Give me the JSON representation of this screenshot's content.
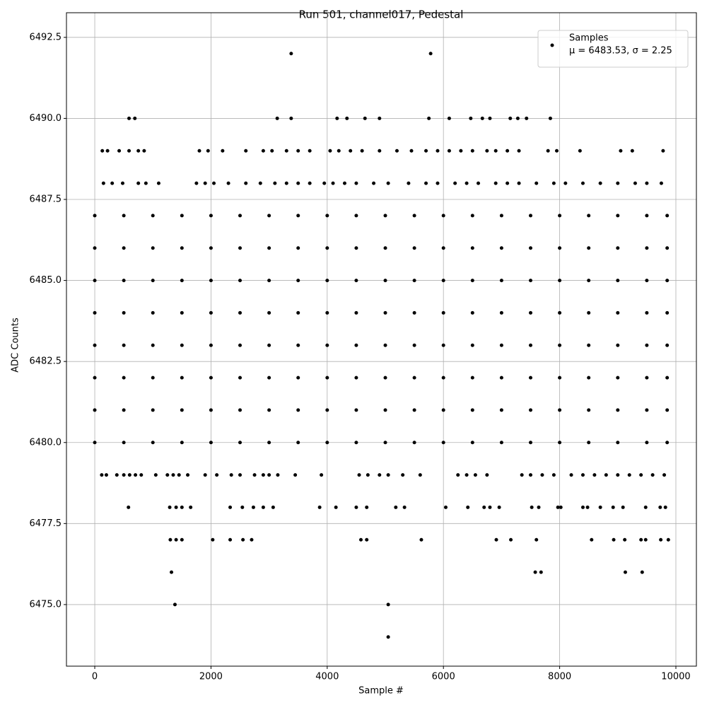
{
  "chart_data": {
    "type": "scatter",
    "title": "Run 501, channel017, Pedestal",
    "xlabel": "Sample #",
    "ylabel": "ADC Counts",
    "legend_position": "upper right",
    "annotation": "μ = 6483.53, σ = 2.25",
    "grid": true,
    "xlim": [
      -487,
      10353
    ],
    "xticks": [
      0,
      2000,
      4000,
      6000,
      8000,
      10000
    ],
    "ylim": [
      6473.1,
      6493.26
    ],
    "yticks": [
      {
        "value": 6475,
        "label": "6475.0"
      },
      {
        "value": 6477.5,
        "label": "6477.5"
      },
      {
        "value": 6480,
        "label": "6480.0"
      },
      {
        "value": 6482.5,
        "label": "6482.5"
      },
      {
        "value": 6485,
        "label": "6485.0"
      },
      {
        "value": 6487.5,
        "label": "6487.5"
      },
      {
        "value": 6490,
        "label": "6490.0"
      },
      {
        "value": 6492.5,
        "label": "6492.5"
      }
    ],
    "series": [
      {
        "name": "Samples",
        "color": "#000000",
        "x": [
          0,
          500,
          1000,
          1500,
          2000,
          2500,
          3000,
          3500,
          4000,
          4500,
          5000,
          5500,
          6000,
          6500,
          7000,
          7500,
          8000,
          8500,
          9000,
          9500,
          9850,
          0,
          500,
          1000,
          1500,
          2000,
          2500,
          3000,
          3500,
          4000,
          4500,
          5000,
          5500,
          6000,
          6500,
          7000,
          7500,
          8000,
          8500,
          9000,
          9500,
          9850,
          0,
          500,
          1000,
          1500,
          2000,
          2500,
          3000,
          3500,
          4000,
          4500,
          5000,
          5500,
          6000,
          6500,
          7000,
          7500,
          8000,
          8500,
          9000,
          9500,
          9850,
          0,
          500,
          1000,
          1500,
          2000,
          2500,
          3000,
          3500,
          4000,
          4500,
          5000,
          5500,
          6000,
          6500,
          7000,
          7500,
          8000,
          8500,
          9000,
          9500,
          9850,
          0,
          500,
          1000,
          1500,
          2000,
          2500,
          3000,
          3500,
          4000,
          4500,
          5000,
          5500,
          6000,
          6500,
          7000,
          7500,
          8000,
          8500,
          9000,
          9500,
          9850,
          0,
          500,
          1000,
          1500,
          2000,
          2500,
          3000,
          3500,
          4000,
          4500,
          5000,
          5500,
          6000,
          6500,
          7000,
          7500,
          8000,
          8500,
          9000,
          9500,
          9850,
          0,
          500,
          1000,
          1500,
          2000,
          2500,
          3000,
          3500,
          4000,
          4500,
          5000,
          5500,
          6000,
          6500,
          7000,
          7500,
          8000,
          8500,
          9000,
          9500,
          9850,
          0,
          500,
          1000,
          1500,
          2000,
          2500,
          3000,
          3500,
          4000,
          4500,
          5000,
          5500,
          6000,
          6500,
          7000,
          7500,
          8000,
          8500,
          9000,
          9500,
          9850,
          3380,
          5780,
          590,
          690,
          3140,
          3380,
          4170,
          4340,
          4650,
          4900,
          5750,
          6100,
          6470,
          6670,
          6800,
          7150,
          7280,
          7430,
          7840,
          130,
          220,
          420,
          590,
          750,
          850,
          1800,
          1950,
          2200,
          2600,
          2900,
          3050,
          3300,
          3500,
          3700,
          4050,
          4200,
          4400,
          4600,
          4900,
          5200,
          5450,
          5700,
          5900,
          6100,
          6300,
          6500,
          6750,
          6900,
          7100,
          7300,
          7800,
          7950,
          8350,
          9050,
          9250,
          9780,
          150,
          300,
          480,
          750,
          880,
          1100,
          1750,
          1900,
          2050,
          2300,
          2600,
          2850,
          3100,
          3300,
          3500,
          3700,
          3950,
          4100,
          4300,
          4500,
          4800,
          5050,
          5400,
          5700,
          5900,
          6200,
          6400,
          6600,
          6900,
          7100,
          7300,
          7600,
          7900,
          8100,
          8400,
          8700,
          9000,
          9300,
          9500,
          9750,
          120,
          200,
          380,
          500,
          600,
          700,
          800,
          1050,
          1250,
          1350,
          1450,
          1600,
          1900,
          2100,
          2350,
          2500,
          2750,
          2900,
          3000,
          3150,
          3450,
          3900,
          4550,
          4700,
          4900,
          5050,
          5300,
          5600,
          6250,
          6400,
          6550,
          6750,
          7350,
          7500,
          7700,
          7900,
          8200,
          8400,
          8600,
          8800,
          9000,
          9200,
          9400,
          9600,
          9800,
          580,
          1290,
          1400,
          1500,
          1650,
          2330,
          2540,
          2730,
          2900,
          3070,
          3870,
          4150,
          4500,
          4680,
          5180,
          5330,
          6040,
          6420,
          6700,
          6800,
          6960,
          7520,
          7640,
          7970,
          8020,
          8400,
          8480,
          8700,
          8920,
          9090,
          9480,
          9730,
          9820,
          1300,
          1400,
          1500,
          2030,
          2330,
          2550,
          2700,
          4580,
          4680,
          5620,
          6910,
          7160,
          7600,
          8550,
          8930,
          9120,
          9400,
          9480,
          9740,
          9870,
          1320,
          7580,
          7680,
          9130,
          9420,
          1380,
          5050,
          5050
        ],
        "values": [
          6487,
          6487,
          6487,
          6487,
          6487,
          6487,
          6487,
          6487,
          6487,
          6487,
          6487,
          6487,
          6487,
          6487,
          6487,
          6487,
          6487,
          6487,
          6487,
          6487,
          6487,
          6486,
          6486,
          6486,
          6486,
          6486,
          6486,
          6486,
          6486,
          6486,
          6486,
          6486,
          6486,
          6486,
          6486,
          6486,
          6486,
          6486,
          6486,
          6486,
          6486,
          6486,
          6485,
          6485,
          6485,
          6485,
          6485,
          6485,
          6485,
          6485,
          6485,
          6485,
          6485,
          6485,
          6485,
          6485,
          6485,
          6485,
          6485,
          6485,
          6485,
          6485,
          6485,
          6484,
          6484,
          6484,
          6484,
          6484,
          6484,
          6484,
          6484,
          6484,
          6484,
          6484,
          6484,
          6484,
          6484,
          6484,
          6484,
          6484,
          6484,
          6484,
          6484,
          6484,
          6483,
          6483,
          6483,
          6483,
          6483,
          6483,
          6483,
          6483,
          6483,
          6483,
          6483,
          6483,
          6483,
          6483,
          6483,
          6483,
          6483,
          6483,
          6483,
          6483,
          6483,
          6482,
          6482,
          6482,
          6482,
          6482,
          6482,
          6482,
          6482,
          6482,
          6482,
          6482,
          6482,
          6482,
          6482,
          6482,
          6482,
          6482,
          6482,
          6482,
          6482,
          6482,
          6481,
          6481,
          6481,
          6481,
          6481,
          6481,
          6481,
          6481,
          6481,
          6481,
          6481,
          6481,
          6481,
          6481,
          6481,
          6481,
          6481,
          6481,
          6481,
          6481,
          6481,
          6480,
          6480,
          6480,
          6480,
          6480,
          6480,
          6480,
          6480,
          6480,
          6480,
          6480,
          6480,
          6480,
          6480,
          6480,
          6480,
          6480,
          6480,
          6480,
          6480,
          6480,
          6492,
          6492,
          6490,
          6490,
          6490,
          6490,
          6490,
          6490,
          6490,
          6490,
          6490,
          6490,
          6490,
          6490,
          6490,
          6490,
          6490,
          6490,
          6490,
          6489,
          6489,
          6489,
          6489,
          6489,
          6489,
          6489,
          6489,
          6489,
          6489,
          6489,
          6489,
          6489,
          6489,
          6489,
          6489,
          6489,
          6489,
          6489,
          6489,
          6489,
          6489,
          6489,
          6489,
          6489,
          6489,
          6489,
          6489,
          6489,
          6489,
          6489,
          6489,
          6489,
          6489,
          6489,
          6489,
          6489,
          6488,
          6488,
          6488,
          6488,
          6488,
          6488,
          6488,
          6488,
          6488,
          6488,
          6488,
          6488,
          6488,
          6488,
          6488,
          6488,
          6488,
          6488,
          6488,
          6488,
          6488,
          6488,
          6488,
          6488,
          6488,
          6488,
          6488,
          6488,
          6488,
          6488,
          6488,
          6488,
          6488,
          6488,
          6488,
          6488,
          6488,
          6488,
          6488,
          6488,
          6479,
          6479,
          6479,
          6479,
          6479,
          6479,
          6479,
          6479,
          6479,
          6479,
          6479,
          6479,
          6479,
          6479,
          6479,
          6479,
          6479,
          6479,
          6479,
          6479,
          6479,
          6479,
          6479,
          6479,
          6479,
          6479,
          6479,
          6479,
          6479,
          6479,
          6479,
          6479,
          6479,
          6479,
          6479,
          6479,
          6479,
          6479,
          6479,
          6479,
          6479,
          6479,
          6479,
          6479,
          6479,
          6478,
          6478,
          6478,
          6478,
          6478,
          6478,
          6478,
          6478,
          6478,
          6478,
          6478,
          6478,
          6478,
          6478,
          6478,
          6478,
          6478,
          6478,
          6478,
          6478,
          6478,
          6478,
          6478,
          6478,
          6478,
          6478,
          6478,
          6478,
          6478,
          6478,
          6478,
          6478,
          6478,
          6477,
          6477,
          6477,
          6477,
          6477,
          6477,
          6477,
          6477,
          6477,
          6477,
          6477,
          6477,
          6477,
          6477,
          6477,
          6477,
          6477,
          6477,
          6477,
          6477,
          6476,
          6476,
          6476,
          6476,
          6476,
          6475,
          6475,
          6474
        ]
      }
    ]
  }
}
